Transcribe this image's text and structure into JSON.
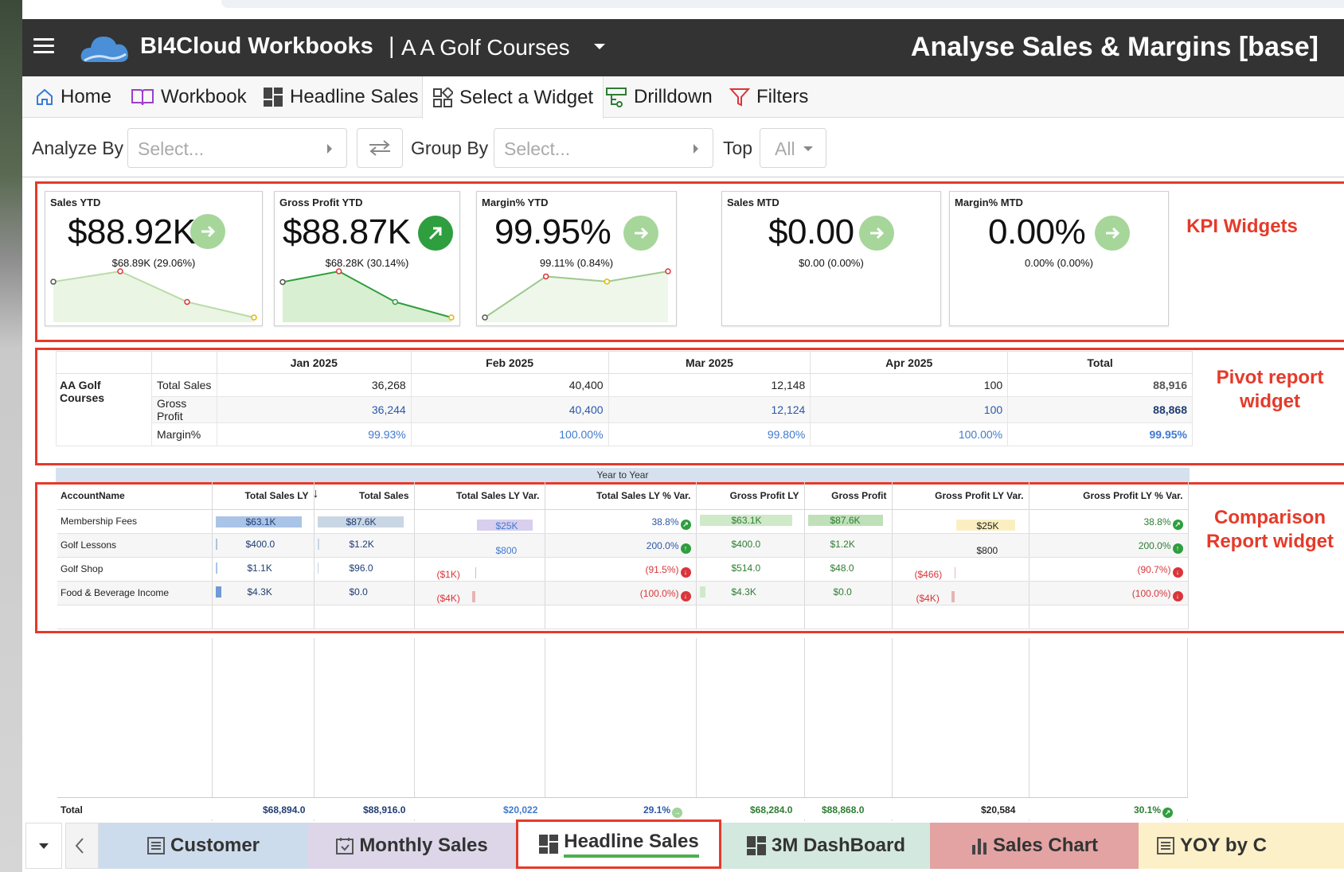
{
  "header": {
    "app_title": "BI4Cloud Workbooks",
    "separator": "|",
    "company": "A A Golf Courses",
    "page_title": "Analyse Sales & Margins [base]"
  },
  "nav": {
    "home": "Home",
    "workbook": "Workbook",
    "headline_sales": "Headline Sales",
    "select_widget": "Select a Widget",
    "drilldown": "Drilldown",
    "filters": "Filters"
  },
  "controls": {
    "analyze_by_label": "Analyze By",
    "analyze_by_placeholder": "Select...",
    "group_by_label": "Group By",
    "group_by_placeholder": "Select...",
    "top_label": "Top",
    "top_value": "All"
  },
  "annotations": {
    "kpi": "KPI Widgets",
    "pivot": "Pivot report widget",
    "comparison": "Comparison Report widget"
  },
  "kpis": [
    {
      "title": "Sales YTD",
      "value": "$88.92K",
      "compare": "$68.89K (29.06%)",
      "trend": [
        68.9,
        88.9,
        30,
        0.1
      ]
    },
    {
      "title": "Gross Profit YTD",
      "value": "$88.87K",
      "compare": "$68.28K (30.14%)",
      "trend": [
        68.3,
        88.9,
        30,
        0.1
      ]
    },
    {
      "title": "Margin% YTD",
      "value": "99.95%",
      "compare": "99.11% (0.84%)",
      "trend": [
        99.1,
        99.9,
        99.8,
        100
      ]
    },
    {
      "title": "Sales MTD",
      "value": "$0.00",
      "compare": "$0.00 (0.00%)"
    },
    {
      "title": "Margin% MTD",
      "value": "0.00%",
      "compare": "0.00% (0.00%)"
    }
  ],
  "pivot": {
    "row_group": "AA Golf Courses",
    "columns": [
      "Jan 2025",
      "Feb 2025",
      "Mar 2025",
      "Apr 2025",
      "Total"
    ],
    "rows": [
      {
        "label": "Total Sales",
        "values": [
          "36,268",
          "40,400",
          "12,148",
          "100",
          "88,916"
        ]
      },
      {
        "label": "Gross Profit",
        "values": [
          "36,244",
          "40,400",
          "12,124",
          "100",
          "88,868"
        ]
      },
      {
        "label": "Margin%",
        "values": [
          "99.93%",
          "100.00%",
          "99.80%",
          "100.00%",
          "99.95%"
        ]
      }
    ]
  },
  "comparison": {
    "band": "Year to Year",
    "sort_indicator": "↓",
    "columns": [
      "AccountName",
      "Total Sales LY",
      "Total Sales",
      "Total Sales LY Var.",
      "Total Sales LY % Var.",
      "Gross Profit LY",
      "Gross Profit",
      "Gross Profit LY Var.",
      "Gross Profit LY % Var."
    ],
    "rows": [
      {
        "name": "Membership Fees",
        "sales_ly": "$63.1K",
        "sales": "$87.6K",
        "sales_var": "$25K",
        "sales_pct": "38.8%",
        "gp_ly": "$63.1K",
        "gp": "$87.6K",
        "gp_var": "$25K",
        "gp_pct": "38.8%"
      },
      {
        "name": "Golf Lessons",
        "sales_ly": "$400.0",
        "sales": "$1.2K",
        "sales_var": "$800",
        "sales_pct": "200.0%",
        "gp_ly": "$400.0",
        "gp": "$1.2K",
        "gp_var": "$800",
        "gp_pct": "200.0%"
      },
      {
        "name": "Golf Shop",
        "sales_ly": "$1.1K",
        "sales": "$96.0",
        "sales_var": "($1K)",
        "sales_pct": "(91.5%)",
        "gp_ly": "$514.0",
        "gp": "$48.0",
        "gp_var": "($466)",
        "gp_pct": "(90.7%)"
      },
      {
        "name": "Food & Beverage Income",
        "sales_ly": "$4.3K",
        "sales": "$0.0",
        "sales_var": "($4K)",
        "sales_pct": "(100.0%)",
        "gp_ly": "$4.3K",
        "gp": "$0.0",
        "gp_var": "($4K)",
        "gp_pct": "(100.0%)"
      }
    ],
    "totals": {
      "label": "Total",
      "sales_ly": "$68,894.0",
      "sales": "$88,916.0",
      "sales_var": "$20,022",
      "sales_pct": "29.1%",
      "gp_ly": "$68,284.0",
      "gp": "$88,868.0",
      "gp_var": "$20,584",
      "gp_pct": "30.1%"
    }
  },
  "bottom_tabs": [
    "Customer",
    "Monthly Sales",
    "Headline Sales",
    "3M DashBoard",
    "Sales Chart",
    "YOY by C"
  ],
  "colors": {
    "accent_red": "#e53a2a",
    "header_bg": "#333333",
    "kpi_up_light": "#a6d69a",
    "kpi_up_dark": "#2e9e3e"
  }
}
